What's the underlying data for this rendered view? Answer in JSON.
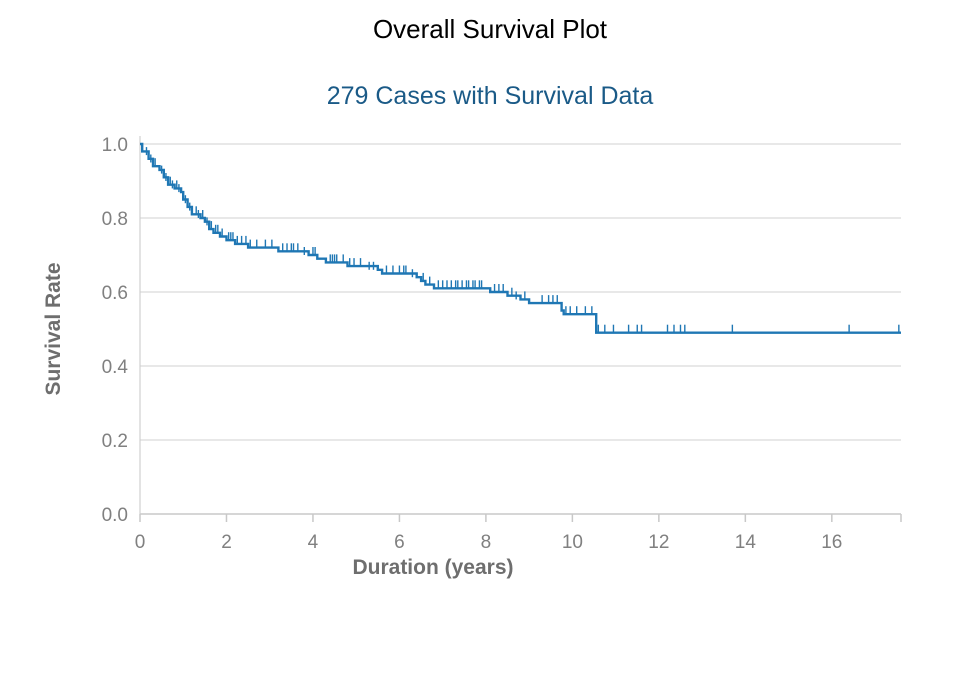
{
  "chart_data": {
    "type": "line",
    "title": "Overall Survival Plot",
    "subtitle": "279 Cases with Survival Data",
    "xlabel": "Duration (years)",
    "ylabel": "Survival Rate",
    "xlim": [
      0,
      17.6
    ],
    "ylim": [
      0,
      1.0
    ],
    "x_ticks": [
      "0",
      "2",
      "4",
      "6",
      "8",
      "10",
      "12",
      "14",
      "16"
    ],
    "y_ticks": [
      "0.0",
      "0.2",
      "0.4",
      "0.6",
      "0.8",
      "1.0"
    ],
    "grid": true,
    "line_color": "#1f77b4",
    "series": [
      {
        "name": "",
        "steps": [
          [
            0.0,
            1.0
          ],
          [
            0.05,
            0.98
          ],
          [
            0.2,
            0.96
          ],
          [
            0.3,
            0.94
          ],
          [
            0.45,
            0.93
          ],
          [
            0.55,
            0.91
          ],
          [
            0.65,
            0.89
          ],
          [
            0.8,
            0.88
          ],
          [
            0.95,
            0.87
          ],
          [
            1.0,
            0.85
          ],
          [
            1.1,
            0.83
          ],
          [
            1.2,
            0.81
          ],
          [
            1.4,
            0.8
          ],
          [
            1.5,
            0.79
          ],
          [
            1.6,
            0.77
          ],
          [
            1.7,
            0.76
          ],
          [
            1.85,
            0.75
          ],
          [
            2.0,
            0.74
          ],
          [
            2.2,
            0.73
          ],
          [
            2.3,
            0.73
          ],
          [
            2.5,
            0.72
          ],
          [
            3.0,
            0.72
          ],
          [
            3.2,
            0.71
          ],
          [
            3.7,
            0.71
          ],
          [
            3.9,
            0.7
          ],
          [
            4.1,
            0.69
          ],
          [
            4.3,
            0.68
          ],
          [
            4.6,
            0.68
          ],
          [
            4.8,
            0.67
          ],
          [
            5.0,
            0.67
          ],
          [
            5.2,
            0.67
          ],
          [
            5.5,
            0.66
          ],
          [
            5.6,
            0.65
          ],
          [
            6.2,
            0.65
          ],
          [
            6.4,
            0.64
          ],
          [
            6.5,
            0.63
          ],
          [
            6.6,
            0.62
          ],
          [
            6.8,
            0.61
          ],
          [
            8.0,
            0.61
          ],
          [
            8.1,
            0.6
          ],
          [
            8.5,
            0.59
          ],
          [
            8.8,
            0.58
          ],
          [
            9.0,
            0.57
          ],
          [
            9.7,
            0.57
          ],
          [
            9.75,
            0.55
          ],
          [
            9.8,
            0.54
          ],
          [
            10.5,
            0.54
          ],
          [
            10.55,
            0.49
          ],
          [
            17.6,
            0.49
          ]
        ],
        "censored": [
          [
            0.05,
            0.98
          ],
          [
            0.15,
            0.97
          ],
          [
            0.25,
            0.95
          ],
          [
            0.35,
            0.94
          ],
          [
            0.5,
            0.92
          ],
          [
            0.6,
            0.9
          ],
          [
            0.7,
            0.89
          ],
          [
            0.75,
            0.88
          ],
          [
            0.85,
            0.88
          ],
          [
            0.9,
            0.87
          ],
          [
            1.05,
            0.84
          ],
          [
            1.15,
            0.82
          ],
          [
            1.3,
            0.81
          ],
          [
            1.35,
            0.8
          ],
          [
            1.45,
            0.8
          ],
          [
            1.55,
            0.78
          ],
          [
            1.65,
            0.77
          ],
          [
            1.75,
            0.76
          ],
          [
            1.8,
            0.76
          ],
          [
            1.9,
            0.75
          ],
          [
            2.05,
            0.74
          ],
          [
            2.1,
            0.74
          ],
          [
            2.15,
            0.74
          ],
          [
            2.25,
            0.73
          ],
          [
            2.35,
            0.73
          ],
          [
            2.45,
            0.73
          ],
          [
            2.55,
            0.72
          ],
          [
            2.7,
            0.72
          ],
          [
            2.9,
            0.72
          ],
          [
            3.05,
            0.72
          ],
          [
            3.3,
            0.71
          ],
          [
            3.4,
            0.71
          ],
          [
            3.5,
            0.71
          ],
          [
            3.55,
            0.71
          ],
          [
            3.65,
            0.71
          ],
          [
            3.8,
            0.7
          ],
          [
            4.0,
            0.7
          ],
          [
            4.05,
            0.7
          ],
          [
            4.4,
            0.68
          ],
          [
            4.45,
            0.68
          ],
          [
            4.5,
            0.68
          ],
          [
            4.55,
            0.68
          ],
          [
            4.7,
            0.68
          ],
          [
            4.85,
            0.67
          ],
          [
            4.95,
            0.67
          ],
          [
            5.1,
            0.67
          ],
          [
            5.3,
            0.66
          ],
          [
            5.4,
            0.66
          ],
          [
            5.7,
            0.65
          ],
          [
            5.85,
            0.65
          ],
          [
            6.0,
            0.65
          ],
          [
            6.1,
            0.65
          ],
          [
            6.15,
            0.65
          ],
          [
            6.3,
            0.64
          ],
          [
            6.55,
            0.63
          ],
          [
            6.7,
            0.62
          ],
          [
            6.9,
            0.61
          ],
          [
            7.0,
            0.61
          ],
          [
            7.1,
            0.61
          ],
          [
            7.2,
            0.61
          ],
          [
            7.3,
            0.61
          ],
          [
            7.35,
            0.61
          ],
          [
            7.45,
            0.61
          ],
          [
            7.55,
            0.61
          ],
          [
            7.6,
            0.61
          ],
          [
            7.7,
            0.61
          ],
          [
            7.75,
            0.61
          ],
          [
            7.85,
            0.61
          ],
          [
            7.9,
            0.61
          ],
          [
            8.2,
            0.6
          ],
          [
            8.3,
            0.6
          ],
          [
            8.4,
            0.6
          ],
          [
            8.6,
            0.59
          ],
          [
            8.7,
            0.58
          ],
          [
            8.9,
            0.58
          ],
          [
            9.3,
            0.57
          ],
          [
            9.45,
            0.57
          ],
          [
            9.55,
            0.57
          ],
          [
            9.65,
            0.57
          ],
          [
            9.85,
            0.54
          ],
          [
            9.95,
            0.54
          ],
          [
            10.1,
            0.54
          ],
          [
            10.3,
            0.54
          ],
          [
            10.45,
            0.54
          ],
          [
            10.6,
            0.49
          ],
          [
            10.75,
            0.49
          ],
          [
            10.95,
            0.49
          ],
          [
            11.3,
            0.49
          ],
          [
            11.5,
            0.49
          ],
          [
            11.6,
            0.49
          ],
          [
            12.2,
            0.49
          ],
          [
            12.35,
            0.49
          ],
          [
            12.5,
            0.49
          ],
          [
            12.6,
            0.49
          ],
          [
            13.7,
            0.49
          ],
          [
            16.4,
            0.49
          ],
          [
            17.55,
            0.49
          ]
        ]
      }
    ]
  }
}
